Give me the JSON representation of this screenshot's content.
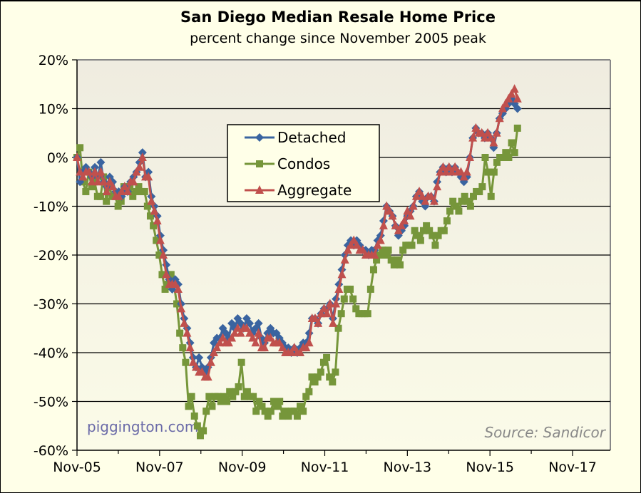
{
  "chart_data": {
    "type": "line",
    "title": "San Diego Median Resale Home Price",
    "subtitle": "percent change since November 2005 peak",
    "xlabel": "",
    "ylabel": "",
    "ylim": [
      -60,
      20
    ],
    "y_ticks": [
      "20%",
      "10%",
      "0%",
      "-10%",
      "-20%",
      "-30%",
      "-40%",
      "-50%",
      "-60%"
    ],
    "y_tick_values": [
      20,
      10,
      0,
      -10,
      -20,
      -30,
      -40,
      -50,
      -60
    ],
    "x_start": "Nov-05",
    "x_frequency": "monthly",
    "x_tick_labels": [
      "Nov-05",
      "Nov-07",
      "Nov-09",
      "Nov-11",
      "Nov-13",
      "Nov-15",
      "Nov-17"
    ],
    "x_tick_month_index": [
      0,
      24,
      48,
      72,
      96,
      120,
      144
    ],
    "x_minor_tick_month_index": [
      0,
      12,
      24,
      36,
      48,
      60,
      72,
      84,
      96,
      108,
      120,
      132,
      144
    ],
    "x_range_months": [
      0,
      128
    ],
    "grid": "horizontal",
    "legend": {
      "position": "upper-center",
      "entries": [
        "Detached",
        "Condos",
        "Aggregate"
      ]
    },
    "annotations": {
      "watermark": "piggington.com",
      "source": "Source: Sandicor"
    },
    "series": [
      {
        "name": "Detached",
        "color": "#3a64a0",
        "marker": "diamond",
        "values": [
          0,
          -5,
          -3,
          -2,
          -3,
          -4,
          -2,
          -4,
          -1,
          -5,
          -6,
          -4,
          -5,
          -7,
          -7,
          -8,
          -6,
          -7,
          -5,
          -4,
          -3,
          -1,
          1,
          -4,
          -3,
          -8,
          -10,
          -12,
          -16,
          -19,
          -22,
          -25,
          -27,
          -25,
          -26,
          -30,
          -33,
          -35,
          -38,
          -41,
          -43,
          -41,
          -43,
          -44,
          -43,
          -41,
          -38,
          -37,
          -37,
          -35,
          -36,
          -37,
          -34,
          -35,
          -33,
          -34,
          -35,
          -33,
          -34,
          -36,
          -35,
          -34,
          -37,
          -38,
          -36,
          -35,
          -36,
          -36,
          -37,
          -38,
          -39,
          -39,
          -40,
          -39,
          -40,
          -39,
          -38,
          -38,
          -36,
          -33,
          -33,
          -34,
          -32,
          -31,
          -31,
          -30,
          -33,
          -29,
          -26,
          -23,
          -20,
          -18,
          -17,
          -18,
          -17,
          -18,
          -19,
          -19,
          -20,
          -19,
          -19,
          -17,
          -16,
          -13,
          -10,
          -11,
          -12,
          -14,
          -16,
          -15,
          -14,
          -12,
          -11,
          -10,
          -8,
          -7,
          -9,
          -10,
          -8,
          -8,
          -9,
          -5,
          -3,
          -2,
          -3,
          -2,
          -3,
          -2,
          -3,
          -4,
          -5,
          -4,
          0,
          4,
          6,
          5,
          5,
          4,
          5,
          4,
          2,
          5,
          8,
          9,
          10,
          11,
          12,
          11,
          10
        ],
        "markers_note": "monthly values in percent"
      },
      {
        "name": "Condos",
        "color": "#76963a",
        "marker": "square",
        "values": [
          0,
          2,
          -5,
          -7,
          -3,
          -6,
          -5,
          -8,
          -8,
          -4,
          -9,
          -6,
          -8,
          -8,
          -10,
          -9,
          -6,
          -7,
          -6,
          -8,
          -7,
          -6,
          -7,
          -7,
          -10,
          -12,
          -14,
          -17,
          -20,
          -24,
          -27,
          -26,
          -24,
          -26,
          -30,
          -36,
          -39,
          -42,
          -51,
          -49,
          -53,
          -55,
          -57,
          -56,
          -52,
          -49,
          -51,
          -49,
          -49,
          -50,
          -49,
          -50,
          -48,
          -49,
          -48,
          -47,
          -42,
          -49,
          -48,
          -49,
          -49,
          -52,
          -50,
          -51,
          -52,
          -53,
          -52,
          -50,
          -51,
          -50,
          -53,
          -52,
          -53,
          -52,
          -52,
          -53,
          -51,
          -52,
          -49,
          -48,
          -45,
          -46,
          -45,
          -44,
          -42,
          -41,
          -45,
          -46,
          -44,
          -35,
          -32,
          -29,
          -27,
          -27,
          -29,
          -31,
          -32,
          -32,
          -32,
          -32,
          -27,
          -23,
          -21,
          -20,
          -19,
          -20,
          -19,
          -21,
          -22,
          -21,
          -22,
          -19,
          -18,
          -18,
          -18,
          -15,
          -16,
          -17,
          -15,
          -14,
          -15,
          -16,
          -18,
          -16,
          -15,
          -15,
          -13,
          -11,
          -9,
          -10,
          -11,
          -9,
          -8,
          -9,
          -10,
          -8,
          -7,
          -7,
          -6,
          0,
          -3,
          -8,
          -3,
          -1,
          0,
          0,
          1,
          0,
          3,
          1,
          6
        ],
        "markers_note": "monthly values in percent"
      },
      {
        "name": "Aggregate",
        "color": "#c0504d",
        "marker": "triangle",
        "values": [
          0,
          -3,
          -4,
          -3,
          -3,
          -5,
          -3,
          -5,
          -3,
          -5,
          -7,
          -5,
          -6,
          -8,
          -8,
          -7,
          -6,
          -7,
          -5,
          -5,
          -3,
          -2,
          0,
          -4,
          -4,
          -9,
          -11,
          -13,
          -17,
          -20,
          -24,
          -26,
          -26,
          -26,
          -27,
          -31,
          -34,
          -36,
          -39,
          -42,
          -43,
          -44,
          -44,
          -45,
          -45,
          -42,
          -40,
          -39,
          -38,
          -37,
          -38,
          -38,
          -37,
          -36,
          -35,
          -36,
          -35,
          -35,
          -36,
          -37,
          -38,
          -36,
          -39,
          -39,
          -37,
          -37,
          -38,
          -38,
          -38,
          -39,
          -40,
          -40,
          -40,
          -39,
          -40,
          -40,
          -39,
          -39,
          -38,
          -33,
          -33,
          -34,
          -32,
          -31,
          -32,
          -30,
          -34,
          -30,
          -27,
          -24,
          -21,
          -19,
          -18,
          -17,
          -18,
          -19,
          -19,
          -20,
          -20,
          -20,
          -20,
          -18,
          -17,
          -14,
          -10,
          -11,
          -12,
          -14,
          -15,
          -14,
          -13,
          -11,
          -12,
          -10,
          -8,
          -7,
          -8,
          -9,
          -8,
          -8,
          -9,
          -6,
          -3,
          -2,
          -3,
          -2,
          -3,
          -2,
          -3,
          -3,
          -4,
          -3,
          0,
          4,
          6,
          5,
          5,
          4,
          5,
          4,
          3,
          5,
          8,
          10,
          11,
          12,
          13,
          14,
          12
        ]
      }
    ]
  }
}
